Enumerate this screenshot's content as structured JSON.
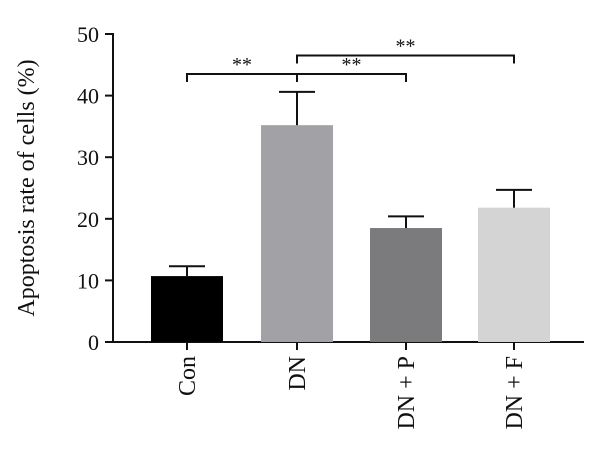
{
  "chart_data": {
    "type": "bar",
    "ylabel": "Apoptosis rate of cells (%)",
    "xlabel": "",
    "ylim": [
      0,
      50
    ],
    "yticks": [
      0,
      10,
      20,
      30,
      40,
      50
    ],
    "grid": false,
    "categories": [
      "Con",
      "DN",
      "DN + P",
      "DN + F"
    ],
    "values": [
      10.7,
      35.2,
      18.5,
      21.8
    ],
    "errors": [
      1.6,
      5.4,
      1.9,
      2.9
    ],
    "colors": [
      "#000000",
      "#a2a1a6",
      "#7b7b7d",
      "#d4d4d4"
    ],
    "significance": [
      {
        "from": "Con",
        "to": "DN",
        "label": "**",
        "y": 43.5
      },
      {
        "from": "DN",
        "to": "DN + P",
        "label": "**",
        "y": 43.5
      },
      {
        "from": "DN",
        "to": "DN + F",
        "label": "**",
        "y": 46.5
      }
    ]
  }
}
